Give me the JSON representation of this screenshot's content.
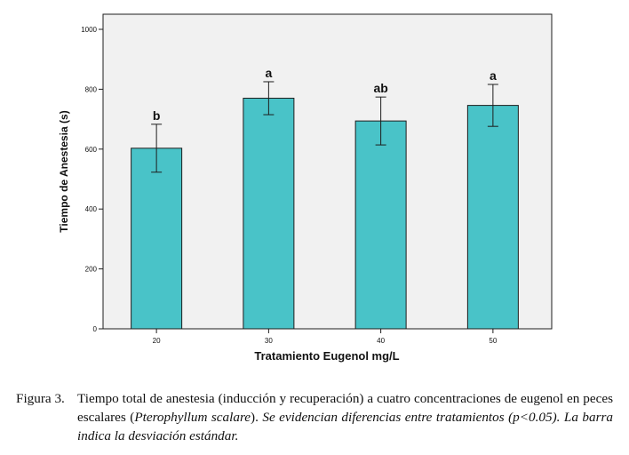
{
  "chart_data": {
    "type": "bar",
    "categories": [
      "20",
      "30",
      "40",
      "50"
    ],
    "values": [
      603,
      770,
      694,
      746
    ],
    "error": [
      80,
      55,
      80,
      70
    ],
    "significance_letters": [
      "b",
      "a",
      "ab",
      "a"
    ],
    "title": "",
    "xlabel": "Tratamiento Eugenol mg/L",
    "ylabel": "Tiempo de Anestesia (s)",
    "ylim": [
      0,
      1000
    ],
    "yticks": [
      0,
      200,
      400,
      600,
      800,
      1000
    ],
    "grid": false,
    "legend": "none",
    "colors": {
      "bar": "#49c3c8",
      "bar_stroke": "#1d1d1d",
      "plot_bg": "#f1f1f1"
    }
  },
  "caption": {
    "label": "Figura 3.",
    "text_normal": "Tiempo total de anestesia (inducción y recuperación) a cuatro concentraciones de eugenol en peces escalares (",
    "species": "Pterophyllum scalare",
    "text_after_species": "). ",
    "text_italic": "Se evidencian diferencias entre tratamientos (p<0.05). La barra indica la desviación estándar."
  }
}
